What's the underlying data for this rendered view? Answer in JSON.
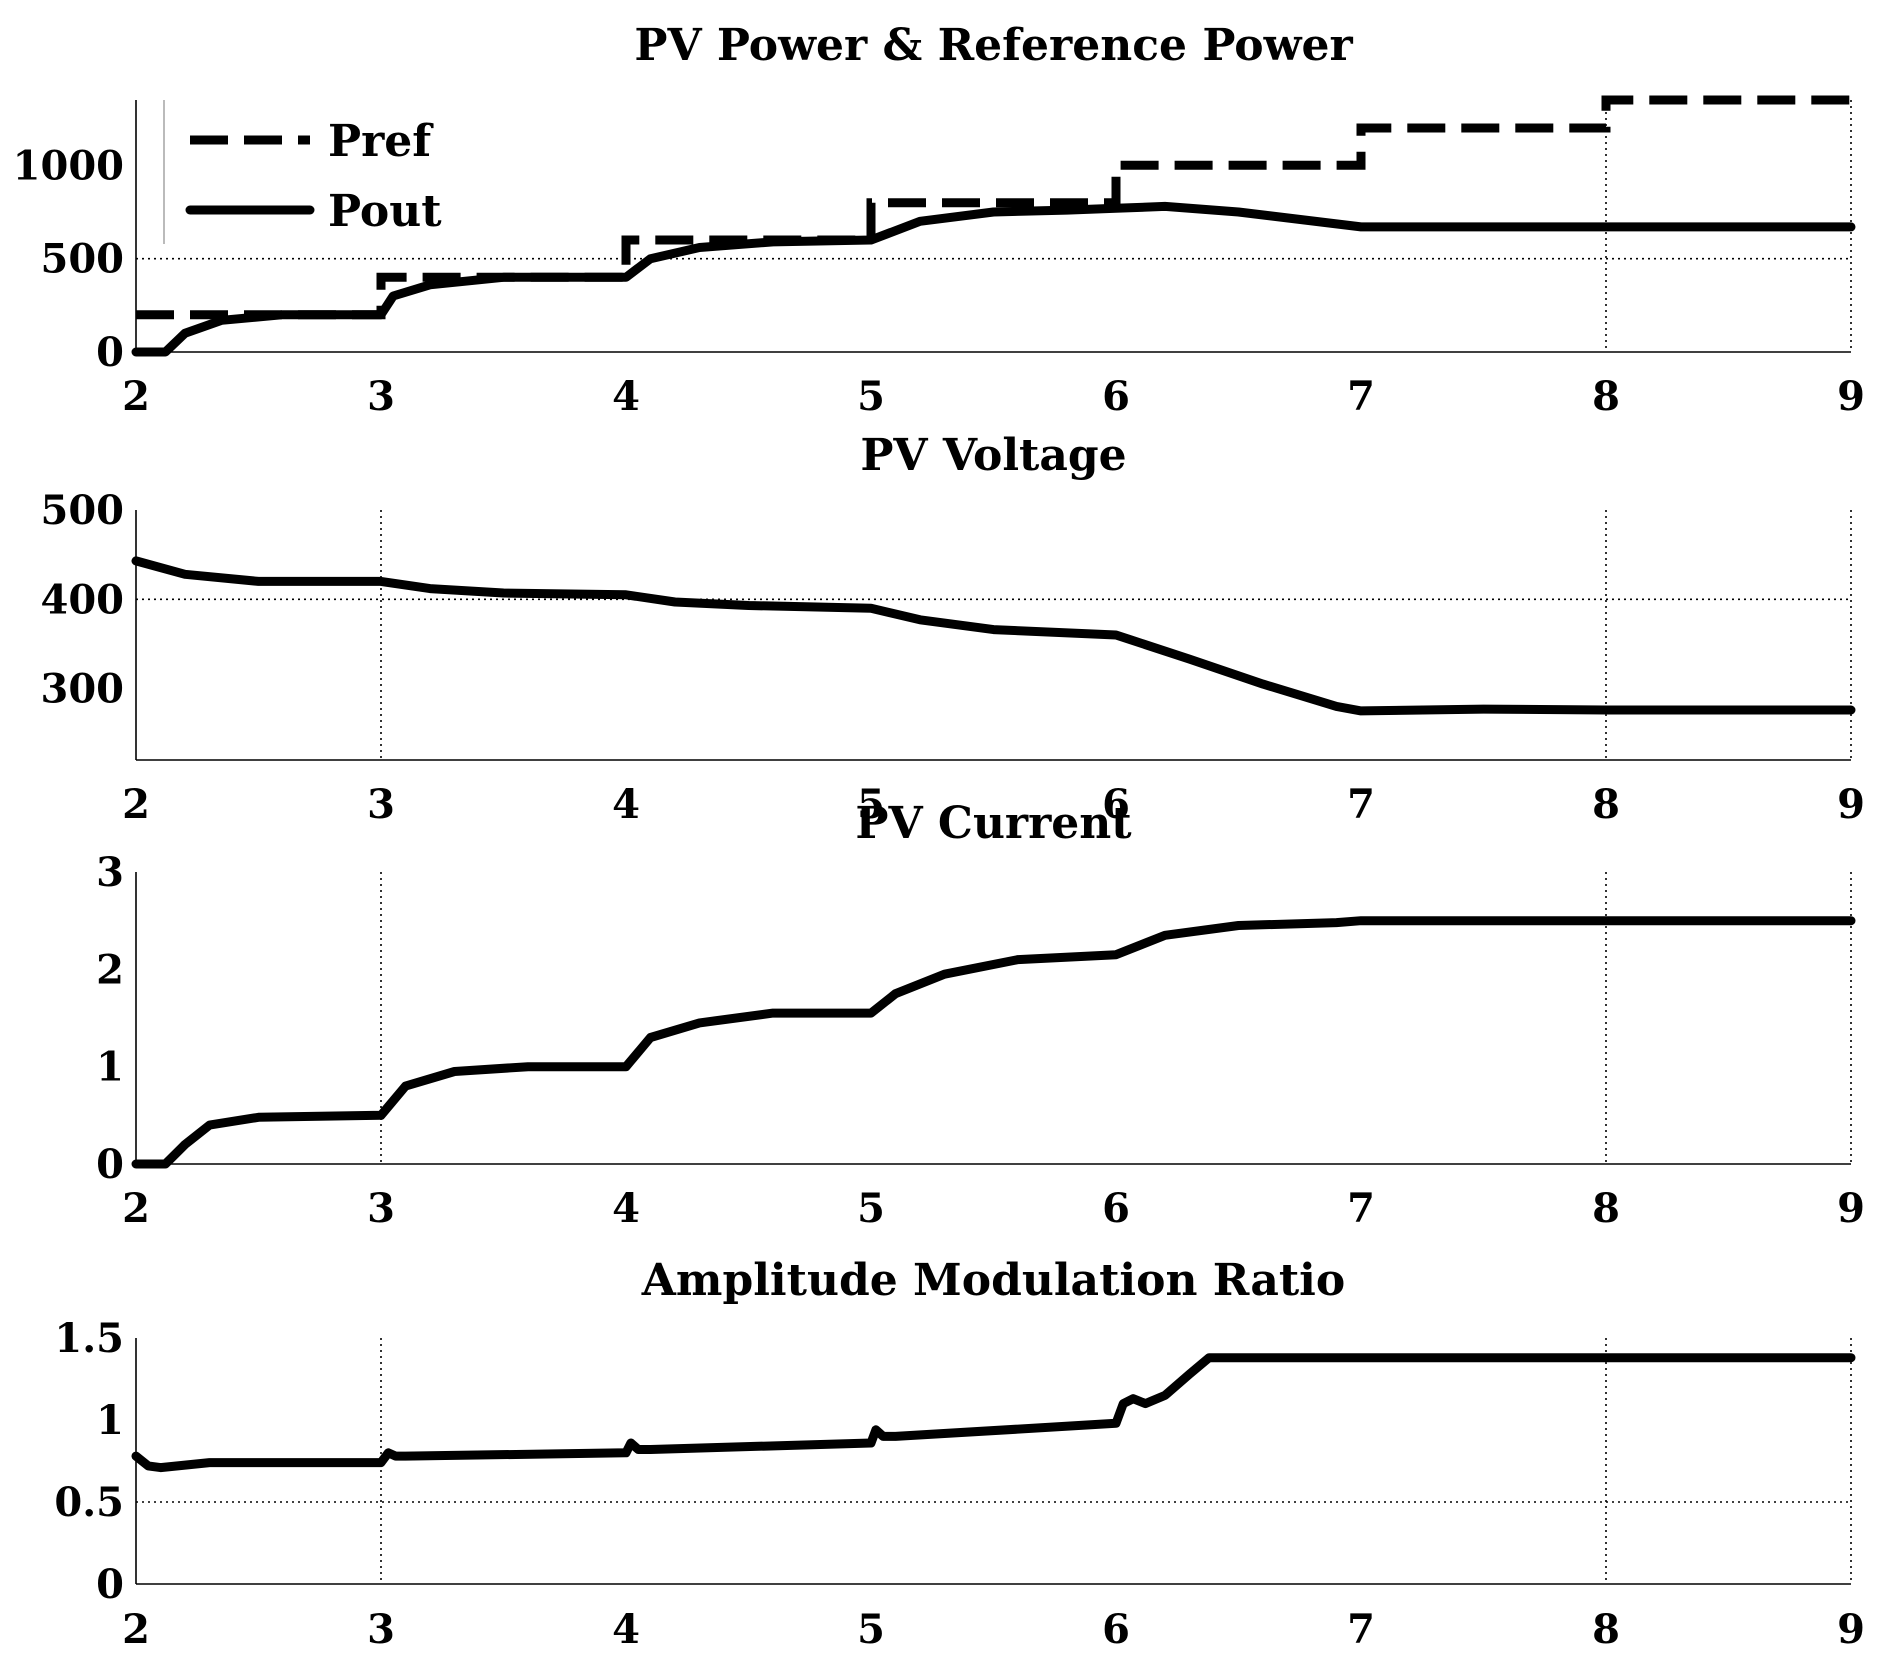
{
  "chart_data": [
    {
      "type": "line",
      "title": "PV Power & Reference Power",
      "xlabel": "",
      "ylabel": "",
      "xlim": [
        2,
        9
      ],
      "ylim": [
        0,
        1350
      ],
      "xticks": [
        2,
        3,
        4,
        5,
        6,
        7,
        8,
        9
      ],
      "xtick_labels": [
        "2",
        "3",
        "4",
        "5",
        "6",
        "7",
        "8",
        "9"
      ],
      "yticks": [
        0,
        500,
        1000
      ],
      "ytick_labels": [
        "0",
        "500",
        "1000"
      ],
      "grid_y": [
        500
      ],
      "grid_x": [
        8
      ],
      "legend": {
        "position": "top-left"
      },
      "series": [
        {
          "name": "Pref",
          "style": "dashed",
          "x": [
            2,
            3,
            3,
            4,
            4,
            5,
            5,
            6,
            6,
            7,
            7,
            8,
            8,
            9
          ],
          "y": [
            200,
            200,
            400,
            400,
            600,
            600,
            800,
            800,
            1000,
            1000,
            1200,
            1200,
            1350,
            1350
          ]
        },
        {
          "name": "Pout",
          "style": "solid",
          "x": [
            2,
            2.12,
            2.2,
            2.35,
            2.6,
            3,
            3.05,
            3.2,
            3.5,
            4,
            4.1,
            4.3,
            4.6,
            5,
            5.2,
            5.5,
            5.8,
            6,
            6.2,
            6.5,
            7,
            7.5,
            8,
            9
          ],
          "y": [
            0,
            0,
            100,
            170,
            200,
            200,
            300,
            360,
            400,
            400,
            500,
            560,
            590,
            600,
            700,
            750,
            760,
            770,
            780,
            750,
            670,
            670,
            670,
            670
          ]
        }
      ]
    },
    {
      "type": "line",
      "title": "PV Voltage",
      "xlabel": "",
      "ylabel": "",
      "xlim": [
        2,
        9
      ],
      "ylim": [
        220,
        500
      ],
      "xticks": [
        2,
        3,
        4,
        5,
        6,
        7,
        8,
        9
      ],
      "xtick_labels": [
        "2",
        "3",
        "4",
        "5",
        "6",
        "7",
        "8",
        "9"
      ],
      "yticks": [
        300,
        400,
        500
      ],
      "ytick_labels": [
        "300",
        "400",
        "500"
      ],
      "grid_y": [
        400
      ],
      "grid_x": [
        3,
        8
      ],
      "series": [
        {
          "style": "solid",
          "x": [
            2,
            2.2,
            2.5,
            3,
            3.2,
            3.5,
            4,
            4.2,
            4.5,
            5,
            5.2,
            5.5,
            6,
            6.3,
            6.6,
            6.9,
            7,
            7.5,
            8,
            9
          ],
          "y": [
            443,
            428,
            420,
            420,
            412,
            407,
            405,
            397,
            393,
            390,
            377,
            366,
            360,
            333,
            305,
            280,
            275,
            277,
            276,
            276
          ]
        }
      ]
    },
    {
      "type": "line",
      "title": "PV Current",
      "xlabel": "",
      "ylabel": "",
      "xlim": [
        2,
        9
      ],
      "ylim": [
        0,
        3
      ],
      "xticks": [
        2,
        3,
        4,
        5,
        6,
        7,
        8,
        9
      ],
      "xtick_labels": [
        "2",
        "3",
        "4",
        "5",
        "6",
        "7",
        "8",
        "9"
      ],
      "yticks": [
        0,
        1,
        2,
        3
      ],
      "ytick_labels": [
        "0",
        "1",
        "2",
        "3"
      ],
      "grid_y": [],
      "grid_x": [
        3,
        8
      ],
      "series": [
        {
          "style": "solid",
          "x": [
            2,
            2.12,
            2.2,
            2.3,
            2.5,
            3,
            3.1,
            3.3,
            3.6,
            4,
            4.1,
            4.3,
            4.6,
            5,
            5.1,
            5.3,
            5.6,
            6,
            6.2,
            6.5,
            6.9,
            7,
            8,
            9
          ],
          "y": [
            0,
            0,
            0.2,
            0.4,
            0.48,
            0.5,
            0.8,
            0.95,
            1.0,
            1.0,
            1.3,
            1.45,
            1.55,
            1.55,
            1.75,
            1.95,
            2.1,
            2.15,
            2.35,
            2.45,
            2.48,
            2.5,
            2.5,
            2.5
          ]
        }
      ]
    },
    {
      "type": "line",
      "title": "Amplitude Modulation Ratio",
      "xlabel": "",
      "ylabel": "",
      "xlim": [
        2,
        9
      ],
      "ylim": [
        0,
        1.5
      ],
      "xticks": [
        2,
        3,
        4,
        5,
        6,
        7,
        8,
        9
      ],
      "xtick_labels": [
        "2",
        "3",
        "4",
        "5",
        "6",
        "7",
        "8",
        "9"
      ],
      "yticks": [
        0,
        0.5,
        1,
        1.5
      ],
      "ytick_labels": [
        "0",
        "0.5",
        "1",
        "1.5"
      ],
      "grid_y": [
        0.5
      ],
      "grid_x": [
        3,
        8
      ],
      "series": [
        {
          "style": "solid",
          "x": [
            2,
            2.05,
            2.1,
            2.3,
            3,
            3.03,
            3.06,
            3.1,
            4,
            4.02,
            4.05,
            4.1,
            5,
            5.02,
            5.05,
            5.1,
            6,
            6.03,
            6.07,
            6.12,
            6.2,
            6.3,
            6.38,
            7,
            8,
            9
          ],
          "y": [
            0.78,
            0.72,
            0.71,
            0.74,
            0.74,
            0.8,
            0.78,
            0.78,
            0.8,
            0.86,
            0.82,
            0.82,
            0.86,
            0.94,
            0.9,
            0.9,
            0.98,
            1.1,
            1.13,
            1.1,
            1.15,
            1.28,
            1.38,
            1.38,
            1.38,
            1.38
          ]
        }
      ]
    }
  ]
}
